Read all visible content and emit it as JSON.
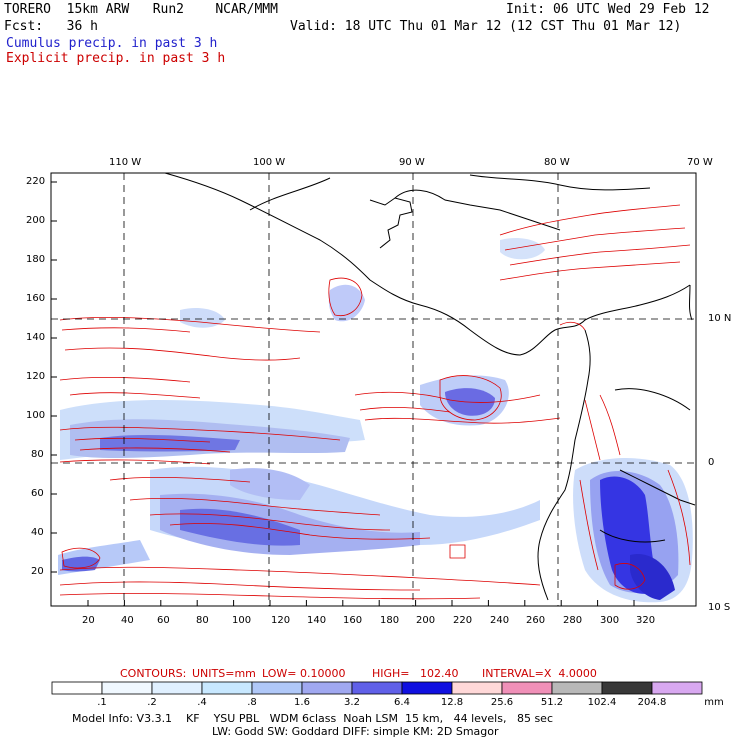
{
  "header": {
    "line1_left": "TORERO  15km ARW   Run2    NCAR/MMM",
    "line1_right": "Init: 06 UTC Wed 29 Feb 12",
    "line2_left": "Fcst:   36 h",
    "line2_right": "Valid: 18 UTC Thu 01 Mar 12 (12 CST Thu 01 Mar 12)",
    "legend_blue": "Cumulus precip. in past 3 h",
    "legend_red": "Explicit precip. in past 3 h"
  },
  "map": {
    "lon_labels": [
      "110 W",
      "100 W",
      "90 W",
      "80 W",
      "70 W"
    ],
    "lat_labels": [
      "10 N",
      "0",
      "10 S"
    ],
    "y_ticks": [
      "220",
      "200",
      "180",
      "160",
      "140",
      "120",
      "100",
      "80",
      "60",
      "40",
      "20"
    ],
    "x_ticks": [
      "20",
      "40",
      "60",
      "80",
      "100",
      "120",
      "140",
      "160",
      "180",
      "200",
      "220",
      "240",
      "260",
      "280",
      "300",
      "320"
    ],
    "colors": {
      "contour": "#dd0000",
      "coast": "#000000"
    }
  },
  "contours_line": {
    "label": "CONTOURS:",
    "units": "UNITS=mm",
    "low": "LOW= 0.10000",
    "high": "HIGH=   102.40",
    "interval": "INTERVAL=X  4.0000"
  },
  "colorbar": {
    "labels": [
      ".1",
      ".2",
      ".4",
      ".8",
      "1.6",
      "3.2",
      "6.4",
      "12.8",
      "25.6",
      "51.2",
      "102.4",
      "204.8"
    ],
    "unit": "mm",
    "colors": [
      "#ffffff",
      "#f0f8ff",
      "#e0f0ff",
      "#c8e8ff",
      "#b0c8f8",
      "#a0a8f0",
      "#6060e8",
      "#1010e0",
      "#ffd8d8",
      "#f090b8",
      "#b8b8b8",
      "#383838",
      "#d8a8f0"
    ]
  },
  "model_info": {
    "line1": "Model Info: V3.3.1    KF    YSU PBL   WDM 6class  Noah LSM  15 km,   44 levels,   85 sec",
    "line2": "LW: Godd SW: Goddard DIFF: simple KM: 2D Smagor"
  }
}
